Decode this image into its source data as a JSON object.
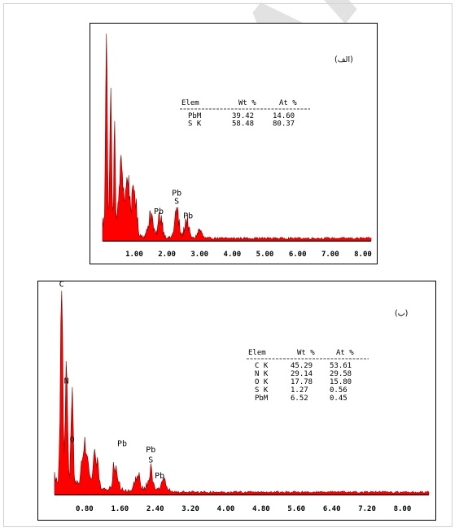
{
  "watermark": "Archive",
  "chart_data": [
    {
      "type": "area",
      "panel_label": "(الف)",
      "x_ticks": [
        "1.00",
        "2.00",
        "3.00",
        "4.00",
        "5.00",
        "6.00",
        "7.00",
        "8.00"
      ],
      "xlim": [
        0.03,
        8.25
      ],
      "series_color": "#ff0000",
      "peaks": [
        {
          "x": 0.15,
          "y": 100
        },
        {
          "x": 0.28,
          "y": 70
        },
        {
          "x": 0.4,
          "y": 48
        },
        {
          "x": 0.6,
          "y": 33
        },
        {
          "x": 0.8,
          "y": 27
        },
        {
          "x": 1.0,
          "y": 22
        },
        {
          "x": 1.5,
          "y": 12
        },
        {
          "x": 1.8,
          "y": 11
        },
        {
          "x": 2.3,
          "y": 13
        },
        {
          "x": 2.6,
          "y": 9
        },
        {
          "x": 3.0,
          "y": 4
        }
      ],
      "peak_labels": [
        {
          "text": "Pb",
          "x": 1.75,
          "y": 13
        },
        {
          "text": "Pb",
          "x": 2.3,
          "y": 22
        },
        {
          "text": "S",
          "x": 2.3,
          "y": 18
        },
        {
          "text": "Pb",
          "x": 2.65,
          "y": 11
        }
      ],
      "table": {
        "columns": [
          "Elem",
          "Wt %",
          "At %"
        ],
        "rows": [
          [
            "PbM",
            "39.42",
            "14.60"
          ],
          [
            "S K",
            "58.48",
            "80.37"
          ]
        ]
      }
    },
    {
      "type": "area",
      "panel_label": "(ب)",
      "x_ticks": [
        "0.80",
        "1.60",
        "2.40",
        "3.20",
        "4.00",
        "4.80",
        "5.60",
        "6.40",
        "7.20",
        "8.00"
      ],
      "xlim": [
        0.12,
        8.6
      ],
      "series_color": "#ff0000",
      "peaks": [
        {
          "x": 0.28,
          "y": 100
        },
        {
          "x": 0.39,
          "y": 60
        },
        {
          "x": 0.52,
          "y": 48
        },
        {
          "x": 0.8,
          "y": 20
        },
        {
          "x": 1.05,
          "y": 15
        },
        {
          "x": 1.5,
          "y": 12
        },
        {
          "x": 2.0,
          "y": 8
        },
        {
          "x": 2.3,
          "y": 10
        },
        {
          "x": 2.6,
          "y": 5
        }
      ],
      "peak_labels": [
        {
          "text": "C",
          "x": 0.28,
          "y": 103
        },
        {
          "text": "N",
          "x": 0.39,
          "y": 55
        },
        {
          "text": "O",
          "x": 0.52,
          "y": 26
        },
        {
          "text": "Pb",
          "x": 1.65,
          "y": 24
        },
        {
          "text": "Pb",
          "x": 2.3,
          "y": 21
        },
        {
          "text": "S",
          "x": 2.3,
          "y": 16
        },
        {
          "text": "Pb",
          "x": 2.5,
          "y": 8
        }
      ],
      "table": {
        "columns": [
          "Elem",
          "Wt %",
          "At %"
        ],
        "rows": [
          [
            "C K",
            "45.29",
            "53.61"
          ],
          [
            "N K",
            "29.14",
            "29.58"
          ],
          [
            "O K",
            "17.78",
            "15.80"
          ],
          [
            "S K",
            "1.27",
            "0.56"
          ],
          [
            "PbM",
            "6.52",
            "0.45"
          ]
        ]
      }
    }
  ]
}
